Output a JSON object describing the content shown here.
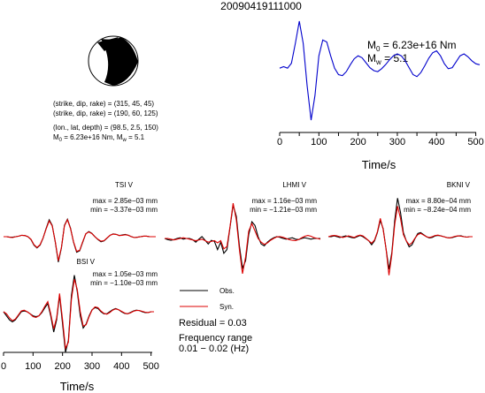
{
  "header": {
    "event_id": "20090419111000"
  },
  "source": {
    "params": [
      "(strike, dip, rake) = (315, 45, 45)",
      "(strike, dip, rake) = (190, 60, 125)",
      "(lon., lat, depth) = (98.5, 2.5, 150)"
    ],
    "m0_w_line": {
      "m0_sym": "M",
      "m0_sub": "0",
      "m0_val": " = 6.23e+16 Nm, ",
      "mw_sym": "M",
      "mw_sub": "w",
      "mw_val": " = 5.1"
    }
  },
  "stf": {
    "m0_sym": "M",
    "m0_sub": "0",
    "m0_val": " = 6.23e+16 Nm",
    "mw_sym": "M",
    "mw_sub": "w",
    "mw_val": " = 5.1"
  },
  "stations": [
    {
      "name": "TSI V",
      "max": "max = 2.85e−03 mm",
      "min": "min = −3.37e−03 mm"
    },
    {
      "name": "LHMI V",
      "max": "max = 1.16e−03 mm",
      "min": "min = −1.21e−03 mm"
    },
    {
      "name": "BKNI V",
      "max": "max = 8.80e−04 mm",
      "min": "min = −8.24e−04 mm"
    },
    {
      "name": "BSI V",
      "max": "max = 1.05e−03 mm",
      "min": "min = −1.10e−03 mm"
    }
  ],
  "legend": {
    "obs": "Obs.",
    "syn": "Syn."
  },
  "residual": "Residual = 0.03",
  "freq": {
    "line1": "Frequency range",
    "line2": "0.01 − 0.02 (Hz)"
  },
  "axis": {
    "label": "Time/s"
  },
  "colors": {
    "obs": "#000000",
    "syn": "#dd0000",
    "stf": "#0000cc"
  },
  "chart_data": [
    {
      "type": "line",
      "ylim": [
        -1,
        1
      ],
      "title": "",
      "xlabel": "Time/s",
      "ylabel": "",
      "xlim": [
        0,
        510
      ],
      "xticks": [
        0,
        50,
        100,
        150,
        200,
        250,
        300,
        350,
        400,
        450,
        500
      ],
      "series": [
        {
          "x": [
            0,
            10,
            20,
            30,
            40,
            50,
            60,
            70,
            80,
            90,
            100,
            110,
            120,
            130,
            140,
            150,
            160,
            170,
            180,
            190,
            200,
            210,
            220,
            230,
            240,
            250,
            260,
            270,
            280,
            290,
            300,
            310,
            320,
            330,
            340,
            350,
            360,
            370,
            380,
            390,
            400,
            410,
            420,
            430,
            440,
            450,
            460,
            470,
            480,
            490,
            500,
            510
          ],
          "values": [
            0.05,
            0.08,
            0.05,
            0.15,
            0.55,
            1.0,
            0.55,
            -0.3,
            -1.0,
            -0.5,
            0.3,
            0.62,
            0.58,
            0.3,
            0.05,
            -0.08,
            -0.1,
            -0.02,
            0.12,
            0.24,
            0.3,
            0.26,
            0.16,
            0.06,
            0.0,
            -0.02,
            0.04,
            0.12,
            0.22,
            0.3,
            0.34,
            0.3,
            0.2,
            0.06,
            -0.08,
            -0.12,
            -0.04,
            0.1,
            0.25,
            0.36,
            0.4,
            0.3,
            0.14,
            0.04,
            0.06,
            0.18,
            0.3,
            0.34,
            0.28,
            0.2,
            0.14,
            0.12
          ]
        }
      ]
    },
    {
      "type": "line",
      "ylim": [
        -1,
        1
      ],
      "title": "",
      "xlabel": "",
      "ylabel": "",
      "x": [
        0,
        10,
        20,
        30,
        40,
        50,
        60,
        70,
        80,
        90,
        100,
        110,
        120,
        130,
        140,
        150,
        160,
        170,
        180,
        190,
        200,
        210,
        220,
        230,
        240,
        250,
        260,
        270,
        280,
        290,
        300,
        310,
        320,
        330,
        340,
        350,
        360,
        370,
        380,
        390,
        400,
        410,
        420,
        430,
        440,
        450,
        460,
        470,
        480,
        490,
        500
      ],
      "series": [
        {
          "name": "Obs.",
          "values": [
            0.0,
            0.0,
            -0.02,
            -0.02,
            0.0,
            0.02,
            0.05,
            0.04,
            0.0,
            -0.1,
            -0.3,
            -0.4,
            -0.3,
            -0.05,
            0.3,
            0.6,
            0.4,
            -0.2,
            -0.9,
            -0.4,
            0.4,
            0.62,
            0.3,
            -0.2,
            -0.55,
            -0.5,
            -0.2,
            0.1,
            0.18,
            0.12,
            0.0,
            -0.1,
            -0.18,
            -0.15,
            -0.05,
            0.05,
            0.1,
            0.08,
            0.04,
            0.06,
            0.08,
            0.05,
            0.0,
            -0.03,
            -0.02,
            0.0,
            0.02,
            0.02,
            0.0,
            0.0,
            0.0
          ]
        },
        {
          "name": "Syn.",
          "values": [
            0.0,
            0.0,
            -0.02,
            -0.03,
            0.0,
            0.02,
            0.05,
            0.04,
            0.0,
            -0.09,
            -0.28,
            -0.38,
            -0.28,
            -0.04,
            0.28,
            0.56,
            0.38,
            -0.18,
            -0.85,
            -0.38,
            0.38,
            0.6,
            0.28,
            -0.18,
            -0.52,
            -0.48,
            -0.18,
            0.1,
            0.17,
            0.11,
            0.0,
            -0.09,
            -0.16,
            -0.14,
            -0.04,
            0.05,
            0.09,
            0.08,
            0.04,
            0.05,
            0.07,
            0.05,
            0.0,
            -0.03,
            -0.02,
            0.0,
            0.02,
            0.02,
            0.0,
            0.0,
            0.0
          ]
        }
      ]
    },
    {
      "type": "line",
      "ylim": [
        -1,
        1
      ],
      "title": "",
      "xlabel": "",
      "ylabel": "",
      "x": [
        0,
        10,
        20,
        30,
        40,
        50,
        60,
        70,
        80,
        90,
        100,
        110,
        120,
        130,
        140,
        150,
        160,
        170,
        180,
        190,
        200,
        210,
        220,
        230,
        240,
        250,
        260,
        270,
        280,
        290,
        300,
        310,
        320,
        330,
        340,
        350,
        360,
        370,
        380,
        390,
        400,
        410,
        420,
        430,
        440,
        450,
        460,
        470,
        480,
        490,
        500
      ],
      "series": [
        {
          "name": "Obs.",
          "values": [
            0.0,
            -0.03,
            -0.05,
            -0.03,
            0.0,
            0.02,
            -0.02,
            0.0,
            0.0,
            -0.03,
            -0.1,
            -0.02,
            0.05,
            -0.05,
            -0.15,
            -0.05,
            -0.08,
            -0.3,
            -0.1,
            -0.4,
            -0.3,
            0.3,
            0.9,
            0.6,
            -0.2,
            -0.8,
            -0.6,
            0.1,
            0.45,
            0.35,
            0.05,
            -0.15,
            -0.2,
            -0.1,
            -0.03,
            0.02,
            0.05,
            0.03,
            0.0,
            -0.02,
            0.0,
            0.02,
            -0.02,
            -0.03,
            0.0,
            0.02,
            0.0,
            -0.02,
            0.0,
            0.0,
            0.0
          ]
        },
        {
          "name": "Syn.",
          "values": [
            0.0,
            0.0,
            -0.02,
            -0.04,
            -0.02,
            0.0,
            0.02,
            0.0,
            -0.02,
            -0.04,
            -0.06,
            -0.04,
            -0.02,
            -0.06,
            -0.1,
            -0.08,
            -0.06,
            -0.12,
            -0.06,
            -0.28,
            -0.22,
            0.32,
            0.95,
            0.5,
            -0.3,
            -0.95,
            -0.5,
            0.2,
            0.4,
            0.2,
            0.0,
            -0.1,
            -0.16,
            -0.12,
            -0.05,
            0.0,
            0.04,
            0.05,
            0.03,
            0.0,
            -0.03,
            -0.05,
            -0.06,
            -0.03,
            0.02,
            0.06,
            0.08,
            0.06,
            0.02,
            0.0,
            -0.02
          ]
        }
      ]
    },
    {
      "type": "line",
      "ylim": [
        -1,
        1
      ],
      "title": "",
      "xlabel": "",
      "ylabel": "",
      "x": [
        0,
        10,
        20,
        30,
        40,
        50,
        60,
        70,
        80,
        90,
        100,
        110,
        120,
        130,
        140,
        150,
        160,
        170,
        180,
        190,
        200,
        210,
        220,
        230,
        240,
        250,
        260,
        270,
        280,
        290,
        300,
        310,
        320,
        330,
        340,
        350,
        360,
        370,
        380,
        390,
        400,
        410,
        420,
        430,
        440,
        450,
        460,
        470,
        480,
        490,
        500
      ],
      "series": [
        {
          "name": "Obs.",
          "values": [
            0.0,
            0.0,
            0.02,
            0.0,
            -0.02,
            0.0,
            0.02,
            0.0,
            -0.02,
            -0.03,
            0.0,
            0.03,
            0.0,
            -0.05,
            -0.1,
            -0.2,
            -0.1,
            0.1,
            0.4,
            0.2,
            -0.3,
            -0.8,
            -0.4,
            0.4,
            0.95,
            0.6,
            0.1,
            -0.1,
            -0.25,
            -0.2,
            -0.05,
            0.08,
            0.1,
            0.05,
            0.0,
            -0.03,
            -0.02,
            0.02,
            0.03,
            0.02,
            0.0,
            -0.02,
            -0.03,
            -0.02,
            0.0,
            0.02,
            0.02,
            0.0,
            -0.01,
            0.0,
            0.0
          ]
        },
        {
          "name": "Syn.",
          "values": [
            0.0,
            0.02,
            0.03,
            0.02,
            0.0,
            -0.02,
            0.0,
            0.02,
            0.0,
            -0.02,
            0.02,
            0.04,
            0.02,
            -0.04,
            -0.1,
            -0.16,
            -0.08,
            0.12,
            0.45,
            0.18,
            -0.3,
            -0.95,
            -0.45,
            0.3,
            0.75,
            0.45,
            0.05,
            -0.1,
            -0.2,
            -0.15,
            -0.04,
            0.05,
            0.08,
            0.04,
            0.0,
            -0.02,
            0.0,
            0.03,
            0.04,
            0.02,
            0.0,
            -0.02,
            -0.03,
            -0.01,
            0.01,
            0.02,
            0.01,
            0.0,
            -0.01,
            0.0,
            0.0
          ]
        }
      ]
    },
    {
      "type": "line",
      "ylim": [
        -1,
        1
      ],
      "title": "",
      "xlabel": "Time/s",
      "ylabel": "",
      "xlim": [
        0,
        510
      ],
      "xticks": [
        0,
        100,
        200,
        300,
        400,
        500
      ],
      "x": [
        0,
        10,
        20,
        30,
        40,
        50,
        60,
        70,
        80,
        90,
        100,
        110,
        120,
        130,
        140,
        150,
        160,
        170,
        180,
        190,
        200,
        210,
        220,
        230,
        240,
        250,
        260,
        270,
        280,
        290,
        300,
        310,
        320,
        330,
        340,
        350,
        360,
        370,
        380,
        390,
        400,
        410,
        420,
        430,
        440,
        450,
        460,
        470,
        480,
        490,
        500,
        510
      ],
      "series": [
        {
          "name": "Obs.",
          "values": [
            0.0,
            -0.1,
            -0.2,
            -0.25,
            -0.2,
            -0.1,
            0.0,
            0.02,
            0.0,
            -0.05,
            -0.1,
            -0.12,
            -0.1,
            -0.02,
            0.1,
            0.2,
            -0.1,
            -0.5,
            -0.2,
            0.4,
            -0.3,
            -1.0,
            -0.7,
            0.4,
            0.9,
            0.5,
            -0.1,
            -0.4,
            -0.3,
            -0.1,
            0.05,
            0.1,
            0.08,
            0.0,
            -0.05,
            -0.05,
            0.0,
            0.05,
            0.08,
            0.05,
            0.0,
            -0.04,
            -0.05,
            -0.02,
            0.02,
            0.04,
            0.03,
            0.0,
            -0.02,
            -0.02,
            0.0,
            0.0
          ]
        },
        {
          "name": "Syn.",
          "values": [
            0.0,
            -0.05,
            -0.15,
            -0.22,
            -0.18,
            -0.08,
            0.02,
            0.04,
            0.0,
            -0.05,
            -0.12,
            -0.14,
            -0.1,
            0.0,
            0.14,
            0.25,
            -0.05,
            -0.42,
            -0.15,
            0.45,
            -0.2,
            -0.9,
            -0.75,
            0.3,
            0.8,
            0.55,
            0.0,
            -0.35,
            -0.32,
            -0.12,
            0.04,
            0.12,
            0.1,
            0.02,
            -0.04,
            -0.06,
            -0.02,
            0.04,
            0.07,
            0.05,
            0.01,
            -0.03,
            -0.05,
            -0.03,
            0.01,
            0.03,
            0.03,
            0.01,
            -0.01,
            -0.02,
            0.0,
            0.0
          ]
        }
      ]
    }
  ]
}
